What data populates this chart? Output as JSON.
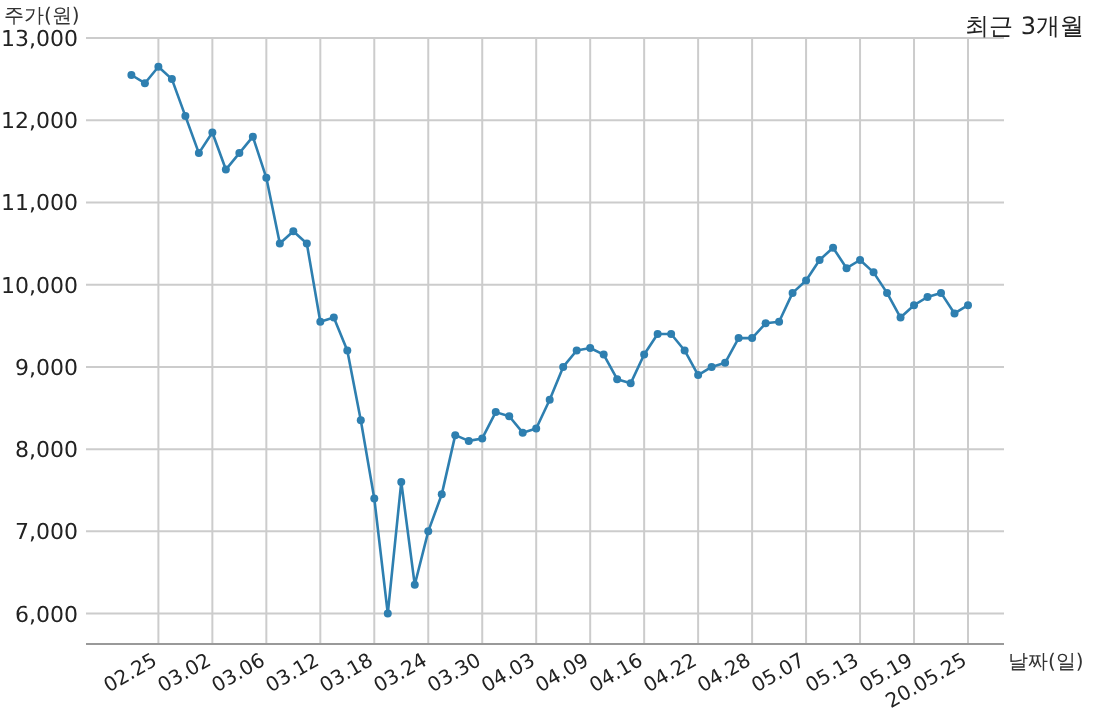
{
  "chart_data": {
    "type": "line",
    "title": "최근 3개월",
    "xlabel": "날짜(일)",
    "ylabel": "주가(원)",
    "categories": [
      null,
      null,
      "02.25",
      null,
      null,
      null,
      "03.02",
      null,
      null,
      null,
      "03.06",
      null,
      null,
      null,
      "03.12",
      null,
      null,
      null,
      "03.18",
      null,
      null,
      null,
      "03.24",
      null,
      null,
      null,
      "03.30",
      null,
      null,
      null,
      "04.03",
      null,
      null,
      null,
      "04.09",
      null,
      null,
      null,
      "04.16",
      null,
      null,
      null,
      "04.22",
      null,
      null,
      null,
      "04.28",
      null,
      null,
      null,
      "05.07",
      null,
      null,
      null,
      "05.13",
      null,
      null,
      null,
      "05.19",
      null,
      null,
      null,
      "20.05.25"
    ],
    "series": [
      {
        "color": "#2e7fb0",
        "values": [
          12550,
          12450,
          12650,
          12500,
          12050,
          11600,
          11850,
          11400,
          11600,
          11800,
          11300,
          10500,
          10650,
          10500,
          9550,
          9600,
          9200,
          8350,
          7400,
          6000,
          7600,
          6350,
          7000,
          7450,
          8170,
          8100,
          8130,
          8450,
          8400,
          8200,
          8250,
          8600,
          9000,
          9200,
          9230,
          9150,
          8850,
          8800,
          9150,
          9400,
          9400,
          9200,
          8900,
          9000,
          9050,
          9350,
          9350,
          9530,
          9550,
          9900,
          10050,
          10300,
          10450,
          10200,
          10300,
          10150,
          9900,
          9600,
          9750,
          9850,
          9900,
          9650,
          9750
        ]
      }
    ],
    "ylim": [
      5630,
      13000
    ],
    "yticks": [
      {
        "value": 6000,
        "label": "6,000"
      },
      {
        "value": 7000,
        "label": "7,000"
      },
      {
        "value": 8000,
        "label": "8,000"
      },
      {
        "value": 9000,
        "label": "9,000"
      },
      {
        "value": 10000,
        "label": "10,000"
      },
      {
        "value": 11000,
        "label": "11,000"
      },
      {
        "value": 12000,
        "label": "12,000"
      },
      {
        "value": 13000,
        "label": "13,000"
      }
    ],
    "grid": true,
    "marker": "circle",
    "line_style": "solid"
  }
}
